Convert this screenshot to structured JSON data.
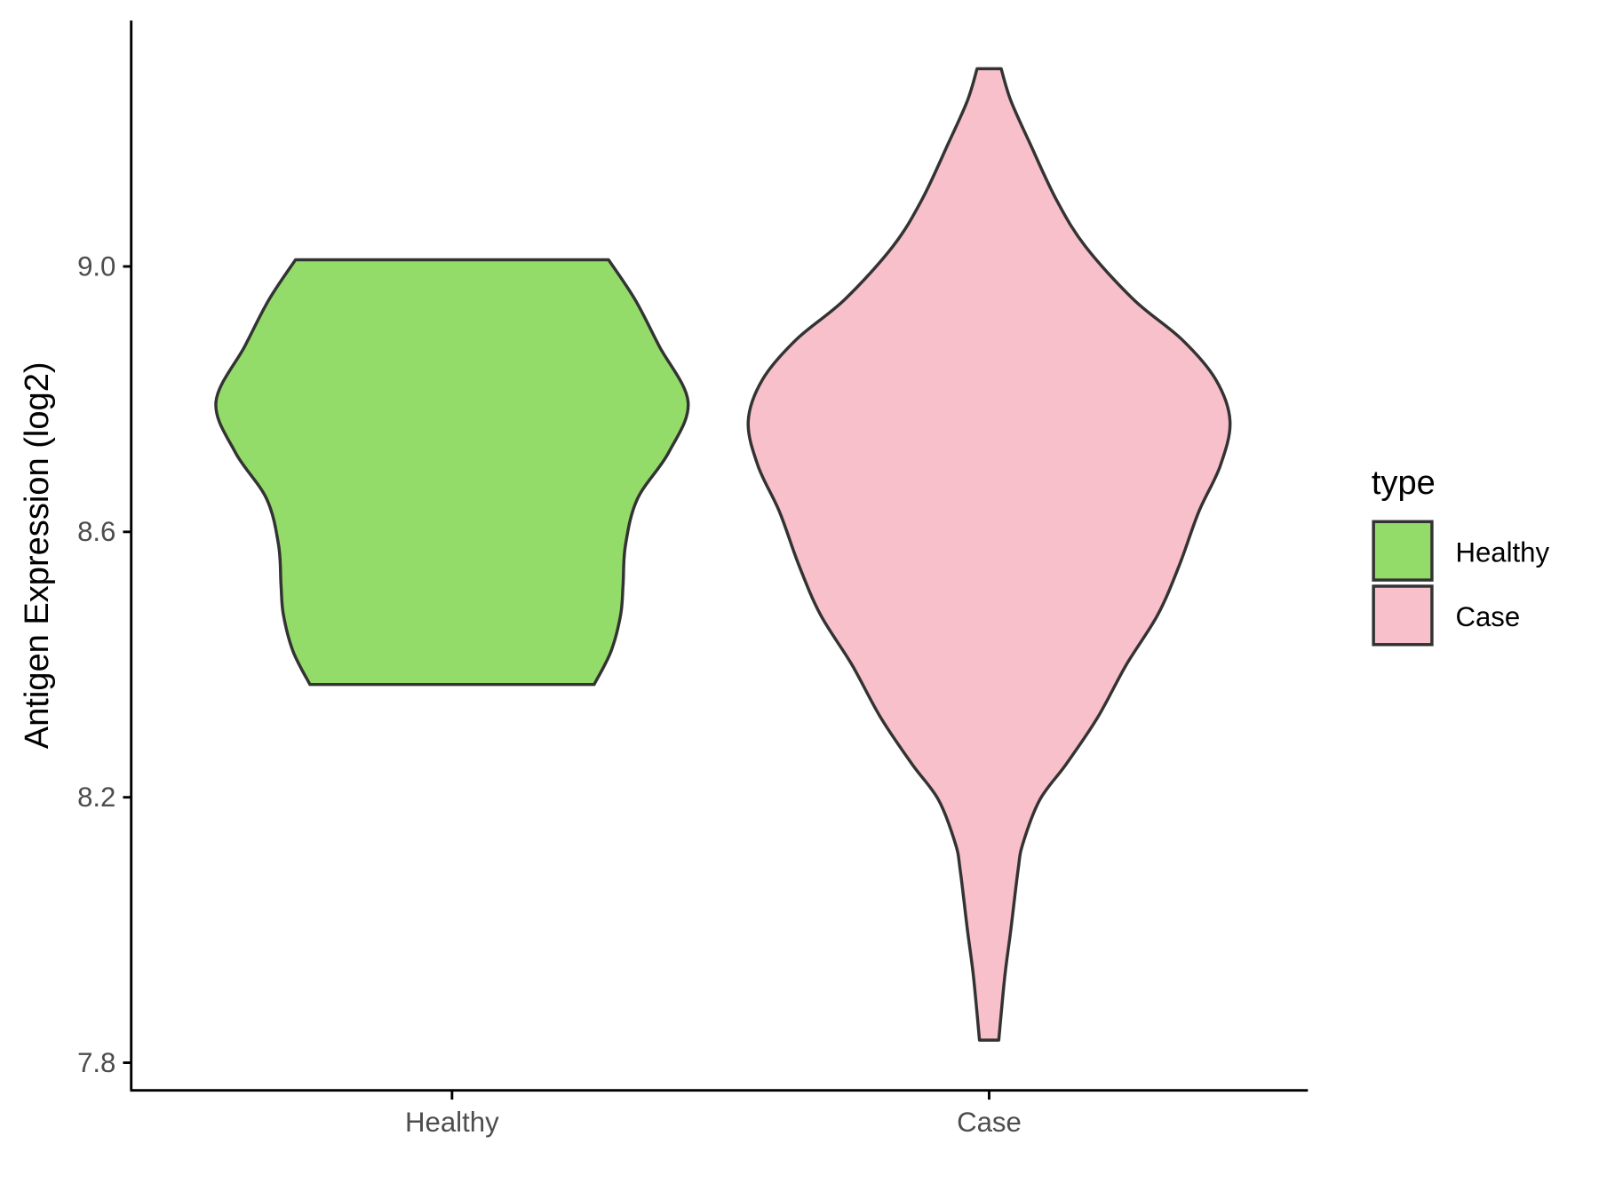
{
  "chart_data": {
    "type": "violin",
    "title": "",
    "xlabel": "",
    "ylabel": "Antigen Expression (log2)",
    "ylim": [
      7.76,
      9.38
    ],
    "yticks": [
      "7.8",
      "8.2",
      "8.6",
      "9.0"
    ],
    "categories": [
      "Healthy",
      "Case"
    ],
    "grid": false,
    "legend": {
      "title": "type",
      "placement": "right",
      "entries": [
        "Healthy",
        "Case"
      ]
    },
    "series": [
      {
        "category": "Healthy",
        "color": "#94dc6a",
        "min": 8.37,
        "max": 9.01,
        "density_profile": [
          [
            9.01,
            0.65
          ],
          [
            8.95,
            0.76
          ],
          [
            8.88,
            0.86
          ],
          [
            8.796,
            0.98
          ],
          [
            8.72,
            0.9
          ],
          [
            8.65,
            0.77
          ],
          [
            8.58,
            0.72
          ],
          [
            8.52,
            0.71
          ],
          [
            8.475,
            0.7
          ],
          [
            8.42,
            0.66
          ],
          [
            8.37,
            0.59
          ]
        ]
      },
      {
        "category": "Case",
        "color": "#f8c0cb",
        "min": 7.834,
        "max": 9.298,
        "density_profile": [
          [
            9.298,
            0.05
          ],
          [
            9.25,
            0.09
          ],
          [
            9.185,
            0.17
          ],
          [
            9.1,
            0.28
          ],
          [
            9.03,
            0.4
          ],
          [
            8.95,
            0.6
          ],
          [
            8.89,
            0.8
          ],
          [
            8.83,
            0.94
          ],
          [
            8.767,
            1.0
          ],
          [
            8.7,
            0.96
          ],
          [
            8.63,
            0.87
          ],
          [
            8.55,
            0.79
          ],
          [
            8.475,
            0.7
          ],
          [
            8.4,
            0.57
          ],
          [
            8.32,
            0.45
          ],
          [
            8.25,
            0.32
          ],
          [
            8.196,
            0.21
          ],
          [
            8.13,
            0.14
          ],
          [
            8.09,
            0.12
          ],
          [
            8.0,
            0.09
          ],
          [
            7.93,
            0.065
          ],
          [
            7.834,
            0.04
          ]
        ]
      }
    ]
  }
}
